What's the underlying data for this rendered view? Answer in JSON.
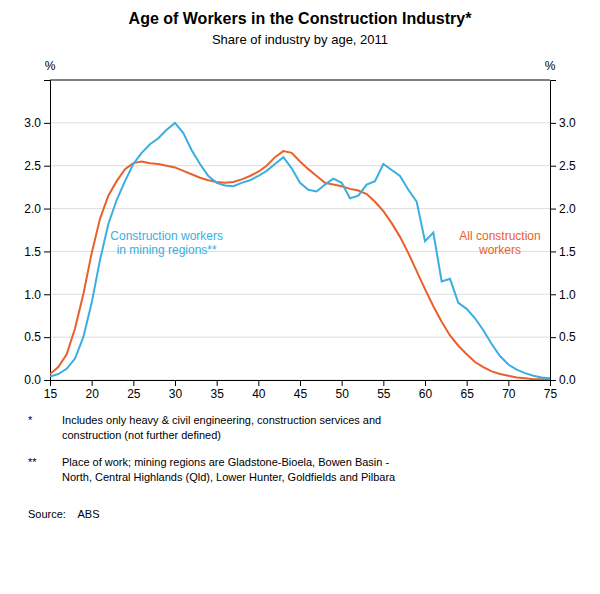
{
  "chart_data": {
    "type": "line",
    "title": "Age of Workers in the Construction Industry*",
    "subtitle": "Share of industry by age, 2011",
    "ylabel": "%",
    "y2label": "%",
    "x": [
      15,
      16,
      17,
      18,
      19,
      20,
      21,
      22,
      23,
      24,
      25,
      26,
      27,
      28,
      29,
      30,
      31,
      32,
      33,
      34,
      35,
      36,
      37,
      38,
      39,
      40,
      41,
      42,
      43,
      44,
      45,
      46,
      47,
      48,
      49,
      50,
      51,
      52,
      53,
      54,
      55,
      56,
      57,
      58,
      59,
      60,
      61,
      62,
      63,
      64,
      65,
      66,
      67,
      68,
      69,
      70,
      71,
      72,
      73,
      74,
      75
    ],
    "series": [
      {
        "name": "All construction\nworkers",
        "color": "#E8612C",
        "values": [
          0.07,
          0.15,
          0.3,
          0.6,
          1.0,
          1.48,
          1.88,
          2.15,
          2.32,
          2.46,
          2.53,
          2.55,
          2.53,
          2.52,
          2.5,
          2.48,
          2.44,
          2.4,
          2.36,
          2.33,
          2.31,
          2.3,
          2.31,
          2.34,
          2.38,
          2.43,
          2.5,
          2.6,
          2.67,
          2.65,
          2.55,
          2.46,
          2.38,
          2.3,
          2.28,
          2.26,
          2.23,
          2.21,
          2.17,
          2.08,
          1.97,
          1.83,
          1.67,
          1.48,
          1.27,
          1.06,
          0.86,
          0.68,
          0.52,
          0.4,
          0.3,
          0.21,
          0.15,
          0.1,
          0.07,
          0.05,
          0.03,
          0.02,
          0.01,
          0.01,
          0.01
        ]
      },
      {
        "name": "Construction workers\nin mining regions**",
        "color": "#3AAEE0",
        "values": [
          0.04,
          0.07,
          0.13,
          0.25,
          0.5,
          0.9,
          1.4,
          1.82,
          2.1,
          2.32,
          2.52,
          2.65,
          2.75,
          2.82,
          2.92,
          3.0,
          2.88,
          2.68,
          2.52,
          2.38,
          2.3,
          2.27,
          2.26,
          2.3,
          2.33,
          2.38,
          2.44,
          2.52,
          2.6,
          2.47,
          2.3,
          2.22,
          2.2,
          2.28,
          2.35,
          2.3,
          2.12,
          2.15,
          2.28,
          2.32,
          2.52,
          2.45,
          2.38,
          2.22,
          2.08,
          1.62,
          1.72,
          1.15,
          1.18,
          0.9,
          0.83,
          0.72,
          0.58,
          0.42,
          0.28,
          0.18,
          0.12,
          0.08,
          0.05,
          0.03,
          0.02
        ]
      }
    ],
    "xlim": [
      15,
      75
    ],
    "xticks": [
      15,
      20,
      25,
      30,
      35,
      40,
      45,
      50,
      55,
      60,
      65,
      70,
      75
    ],
    "ylim": [
      0.0,
      3.5
    ],
    "yticks": [
      {
        "value": 0,
        "label": "0.0"
      },
      0.5,
      {
        "value": 1,
        "label": "1.0"
      },
      1.5,
      {
        "value": 2,
        "label": "2.0"
      },
      2.5,
      {
        "value": 3,
        "label": "3.0"
      }
    ],
    "y2lim": [
      0.0,
      3.5
    ],
    "y2ticks": [
      {
        "value": 0,
        "label": "0.0"
      },
      0.5,
      {
        "value": 1,
        "label": "1.0"
      },
      1.5,
      {
        "value": 2,
        "label": "2.0"
      },
      2.5,
      {
        "value": 3,
        "label": "3.0"
      }
    ],
    "grid": true,
    "footnotes": [
      {
        "marker": "*",
        "text": "Includes only heavy & civil engineering, construction services and\nconstruction (not further defined)"
      },
      {
        "marker": "**",
        "text": "Place of work; mining regions are Gladstone-Bioela, Bowen Basin -\nNorth, Central Highlands (Qld), Lower Hunter, Goldfields and Pilbara"
      }
    ],
    "source": "Source:    ABS"
  }
}
